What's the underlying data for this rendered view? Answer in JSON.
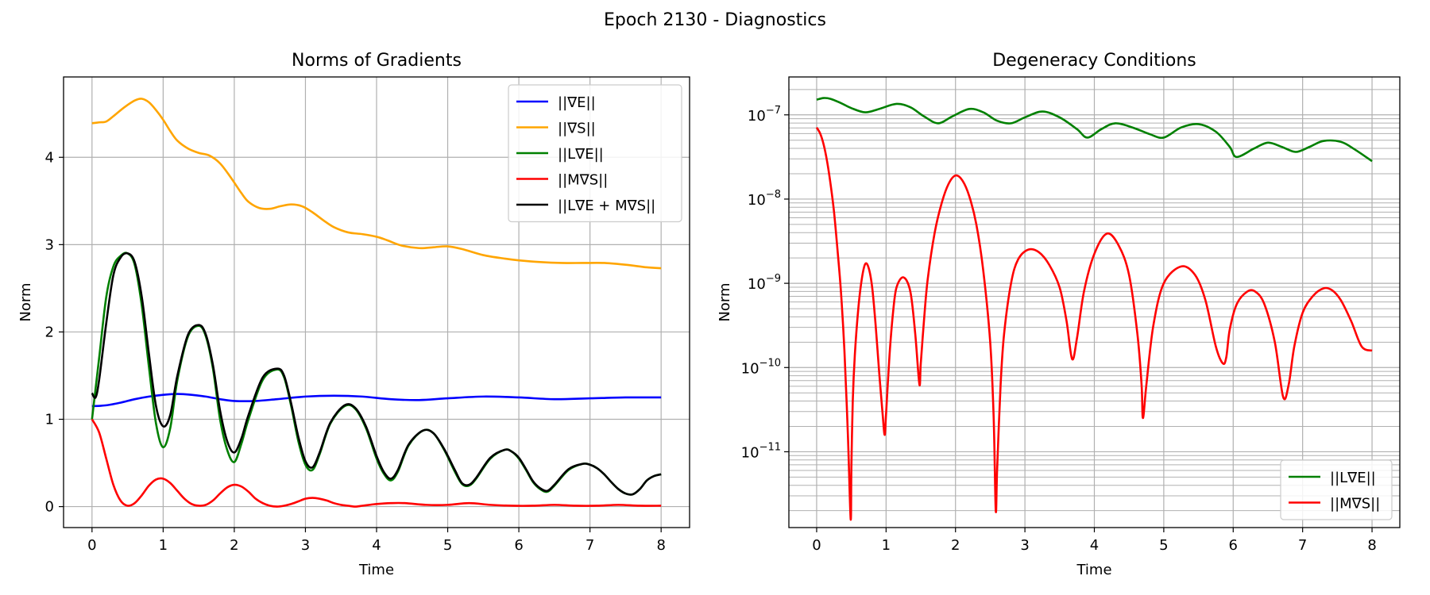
{
  "figure": {
    "title": "Epoch 2130 - Diagnostics"
  },
  "colors": {
    "blue": "#0000ff",
    "orange": "#ffa500",
    "green": "#008000",
    "red": "#ff0000",
    "black": "#000000",
    "grid": "#b0b0b0"
  },
  "chart_data": [
    {
      "type": "line",
      "title": "Norms of Gradients",
      "xlabel": "Time",
      "ylabel": "Norm",
      "xlim": [
        -0.4,
        8.4
      ],
      "ylim": [
        -0.24,
        4.92
      ],
      "xticks": [
        0,
        1,
        2,
        3,
        4,
        5,
        6,
        7,
        8
      ],
      "xtick_labels": [
        "0",
        "1",
        "2",
        "3",
        "4",
        "5",
        "6",
        "7",
        "8"
      ],
      "yticks": [
        0,
        1,
        2,
        3,
        4
      ],
      "ytick_labels": [
        "0",
        "1",
        "2",
        "3",
        "4"
      ],
      "yscale": "linear",
      "grid": true,
      "legend_position": "upper right",
      "series": [
        {
          "name": "||∇E||",
          "color": "#0000ff",
          "x": [
            0,
            0.2,
            0.4,
            0.6,
            0.8,
            1.0,
            1.2,
            1.4,
            1.6,
            1.8,
            2.0,
            2.3,
            2.6,
            3.0,
            3.4,
            3.8,
            4.2,
            4.6,
            5.0,
            5.5,
            6.0,
            6.5,
            7.0,
            7.5,
            8.0
          ],
          "y": [
            1.15,
            1.16,
            1.19,
            1.23,
            1.26,
            1.28,
            1.29,
            1.28,
            1.26,
            1.23,
            1.21,
            1.21,
            1.23,
            1.26,
            1.27,
            1.26,
            1.23,
            1.22,
            1.24,
            1.26,
            1.25,
            1.23,
            1.24,
            1.25,
            1.25
          ]
        },
        {
          "name": "||∇S||",
          "color": "#ffa500",
          "x": [
            0,
            0.1,
            0.2,
            0.3,
            0.45,
            0.6,
            0.7,
            0.8,
            0.9,
            1.0,
            1.1,
            1.2,
            1.35,
            1.5,
            1.65,
            1.8,
            1.95,
            2.1,
            2.2,
            2.35,
            2.5,
            2.65,
            2.8,
            2.95,
            3.1,
            3.25,
            3.4,
            3.6,
            3.8,
            4.0,
            4.15,
            4.35,
            4.6,
            4.8,
            5.0,
            5.2,
            5.5,
            5.8,
            6.0,
            6.3,
            6.6,
            6.9,
            7.2,
            7.5,
            7.8,
            8.0
          ],
          "y": [
            4.39,
            4.4,
            4.41,
            4.47,
            4.57,
            4.65,
            4.67,
            4.63,
            4.54,
            4.43,
            4.3,
            4.19,
            4.1,
            4.05,
            4.02,
            3.93,
            3.77,
            3.59,
            3.49,
            3.42,
            3.41,
            3.44,
            3.46,
            3.44,
            3.37,
            3.28,
            3.2,
            3.14,
            3.12,
            3.09,
            3.05,
            2.99,
            2.96,
            2.97,
            2.98,
            2.95,
            2.88,
            2.84,
            2.82,
            2.8,
            2.79,
            2.79,
            2.79,
            2.77,
            2.74,
            2.73
          ]
        },
        {
          "name": "||L∇E||",
          "color": "#008000",
          "x": [
            0,
            0.1,
            0.2,
            0.3,
            0.4,
            0.5,
            0.6,
            0.7,
            0.8,
            0.9,
            1.0,
            1.1,
            1.2,
            1.35,
            1.5,
            1.6,
            1.7,
            1.8,
            1.9,
            2.0,
            2.1,
            2.2,
            2.4,
            2.6,
            2.7,
            2.8,
            2.9,
            3.0,
            3.1,
            3.2,
            3.35,
            3.55,
            3.7,
            3.85,
            4.0,
            4.1,
            4.2,
            4.3,
            4.45,
            4.65,
            4.8,
            4.95,
            5.1,
            5.2,
            5.3,
            5.4,
            5.6,
            5.8,
            5.9,
            6.0,
            6.1,
            6.2,
            6.3,
            6.4,
            6.5,
            6.7,
            6.9,
            7.0,
            7.1,
            7.2,
            7.3,
            7.4,
            7.5,
            7.6,
            7.7,
            7.8,
            7.9,
            8.0
          ],
          "y": [
            1.0,
            1.7,
            2.4,
            2.75,
            2.87,
            2.9,
            2.77,
            2.3,
            1.6,
            0.95,
            0.68,
            0.9,
            1.45,
            1.95,
            2.07,
            1.95,
            1.58,
            1.0,
            0.65,
            0.51,
            0.72,
            1.0,
            1.45,
            1.57,
            1.48,
            1.15,
            0.75,
            0.48,
            0.42,
            0.6,
            0.95,
            1.15,
            1.12,
            0.9,
            0.55,
            0.38,
            0.3,
            0.4,
            0.7,
            0.87,
            0.84,
            0.65,
            0.4,
            0.26,
            0.24,
            0.32,
            0.55,
            0.65,
            0.63,
            0.55,
            0.42,
            0.28,
            0.2,
            0.17,
            0.24,
            0.42,
            0.49,
            0.48,
            0.44,
            0.37,
            0.28,
            0.2,
            0.15,
            0.14,
            0.2,
            0.3,
            0.35,
            0.37
          ]
        },
        {
          "name": "||M∇S||",
          "color": "#ff0000",
          "x": [
            0,
            0.1,
            0.2,
            0.3,
            0.4,
            0.5,
            0.6,
            0.7,
            0.8,
            0.9,
            1.0,
            1.1,
            1.2,
            1.3,
            1.4,
            1.5,
            1.6,
            1.7,
            1.8,
            1.9,
            2.0,
            2.1,
            2.2,
            2.3,
            2.4,
            2.5,
            2.6,
            2.7,
            2.8,
            2.9,
            3.0,
            3.1,
            3.2,
            3.3,
            3.4,
            3.5,
            3.6,
            3.7,
            3.8,
            3.9,
            4.0,
            4.2,
            4.4,
            4.7,
            5.0,
            5.3,
            5.6,
            5.9,
            6.2,
            6.5,
            6.8,
            7.1,
            7.4,
            7.7,
            8.0
          ],
          "y": [
            1.0,
            0.85,
            0.55,
            0.25,
            0.07,
            0.01,
            0.04,
            0.13,
            0.24,
            0.31,
            0.32,
            0.27,
            0.18,
            0.09,
            0.03,
            0.01,
            0.02,
            0.07,
            0.15,
            0.22,
            0.25,
            0.23,
            0.17,
            0.09,
            0.04,
            0.01,
            0.0,
            0.01,
            0.03,
            0.06,
            0.09,
            0.1,
            0.09,
            0.07,
            0.04,
            0.02,
            0.01,
            0.0,
            0.01,
            0.02,
            0.03,
            0.04,
            0.04,
            0.02,
            0.02,
            0.04,
            0.02,
            0.01,
            0.01,
            0.02,
            0.01,
            0.01,
            0.02,
            0.01,
            0.01
          ]
        },
        {
          "name": "||L∇E + M∇S||",
          "color": "#000000",
          "x": [
            0,
            0.05,
            0.1,
            0.2,
            0.3,
            0.4,
            0.5,
            0.6,
            0.7,
            0.8,
            0.9,
            1.0,
            1.1,
            1.2,
            1.35,
            1.5,
            1.6,
            1.7,
            1.8,
            1.9,
            2.0,
            2.1,
            2.2,
            2.4,
            2.6,
            2.7,
            2.8,
            2.9,
            3.0,
            3.1,
            3.2,
            3.35,
            3.55,
            3.7,
            3.85,
            4.0,
            4.1,
            4.2,
            4.3,
            4.45,
            4.65,
            4.8,
            4.95,
            5.1,
            5.2,
            5.3,
            5.4,
            5.6,
            5.8,
            5.9,
            6.0,
            6.1,
            6.2,
            6.3,
            6.4,
            6.5,
            6.7,
            6.9,
            7.0,
            7.1,
            7.2,
            7.3,
            7.4,
            7.5,
            7.6,
            7.7,
            7.8,
            7.9,
            8.0
          ],
          "y": [
            1.3,
            1.25,
            1.45,
            2.1,
            2.65,
            2.85,
            2.9,
            2.8,
            2.4,
            1.75,
            1.15,
            0.92,
            1.05,
            1.5,
            1.97,
            2.08,
            1.97,
            1.62,
            1.1,
            0.75,
            0.62,
            0.78,
            1.05,
            1.48,
            1.58,
            1.5,
            1.18,
            0.8,
            0.52,
            0.45,
            0.62,
            0.96,
            1.16,
            1.13,
            0.92,
            0.58,
            0.4,
            0.32,
            0.42,
            0.71,
            0.87,
            0.84,
            0.66,
            0.42,
            0.27,
            0.25,
            0.33,
            0.56,
            0.65,
            0.63,
            0.56,
            0.43,
            0.29,
            0.21,
            0.18,
            0.25,
            0.43,
            0.49,
            0.48,
            0.44,
            0.37,
            0.28,
            0.2,
            0.15,
            0.14,
            0.2,
            0.3,
            0.35,
            0.37
          ]
        }
      ]
    },
    {
      "type": "line",
      "title": "Degeneracy Conditions",
      "xlabel": "Time",
      "ylabel": "Norm",
      "xlim": [
        -0.4,
        8.4
      ],
      "ylim_log10": [
        -11.9,
        -6.55
      ],
      "xticks": [
        0,
        1,
        2,
        3,
        4,
        5,
        6,
        7,
        8
      ],
      "xtick_labels": [
        "0",
        "1",
        "2",
        "3",
        "4",
        "5",
        "6",
        "7",
        "8"
      ],
      "yticks_log10": [
        -11,
        -10,
        -9,
        -8,
        -7
      ],
      "ytick_base": "10",
      "ytick_exponents": [
        "−11",
        "−10",
        "−9",
        "−8",
        "−7"
      ],
      "yscale": "log",
      "grid": true,
      "legend_position": "lower right",
      "series": [
        {
          "name": "||L∇E||",
          "color": "#008000",
          "x": [
            0,
            0.1,
            0.2,
            0.35,
            0.5,
            0.7,
            0.9,
            1.15,
            1.35,
            1.55,
            1.75,
            1.95,
            2.2,
            2.4,
            2.6,
            2.8,
            3.0,
            3.25,
            3.5,
            3.75,
            3.9,
            4.1,
            4.3,
            4.55,
            4.8,
            5.0,
            5.25,
            5.5,
            5.75,
            5.95,
            6.05,
            6.3,
            6.5,
            6.7,
            6.9,
            7.1,
            7.3,
            7.55,
            7.75,
            8.0
          ],
          "y_log10": [
            -6.82,
            -6.8,
            -6.81,
            -6.86,
            -6.92,
            -6.97,
            -6.93,
            -6.87,
            -6.91,
            -7.02,
            -7.1,
            -7.02,
            -6.93,
            -6.97,
            -7.07,
            -7.1,
            -7.03,
            -6.96,
            -7.03,
            -7.17,
            -7.27,
            -7.17,
            -7.1,
            -7.15,
            -7.23,
            -7.27,
            -7.15,
            -7.11,
            -7.2,
            -7.38,
            -7.5,
            -7.4,
            -7.33,
            -7.38,
            -7.44,
            -7.38,
            -7.31,
            -7.32,
            -7.41,
            -7.55
          ]
        },
        {
          "name": "||M∇S||",
          "color": "#ff0000",
          "x": [
            0,
            0.05,
            0.1,
            0.15,
            0.2,
            0.25,
            0.3,
            0.35,
            0.4,
            0.45,
            0.49,
            0.5,
            0.52,
            0.55,
            0.6,
            0.65,
            0.7,
            0.75,
            0.8,
            0.85,
            0.9,
            0.95,
            0.98,
            1.0,
            1.05,
            1.1,
            1.15,
            1.25,
            1.35,
            1.42,
            1.48,
            1.5,
            1.55,
            1.6,
            1.7,
            1.8,
            1.9,
            2.0,
            2.1,
            2.2,
            2.3,
            2.4,
            2.5,
            2.55,
            2.58,
            2.6,
            2.65,
            2.7,
            2.8,
            2.9,
            3.05,
            3.2,
            3.35,
            3.5,
            3.6,
            3.68,
            3.75,
            3.85,
            4.0,
            4.18,
            4.35,
            4.5,
            4.62,
            4.68,
            4.7,
            4.75,
            4.85,
            5.0,
            5.25,
            5.45,
            5.6,
            5.75,
            5.85,
            5.9,
            5.95,
            6.05,
            6.2,
            6.32,
            6.45,
            6.6,
            6.72,
            6.8,
            6.88,
            7.0,
            7.15,
            7.3,
            7.42,
            7.55,
            7.7,
            7.85,
            8.0
          ],
          "y_log10": [
            -7.15,
            -7.22,
            -7.35,
            -7.55,
            -7.82,
            -8.15,
            -8.6,
            -9.1,
            -9.8,
            -10.8,
            -11.8,
            -11.2,
            -10.4,
            -9.85,
            -9.3,
            -8.95,
            -8.77,
            -8.82,
            -9.05,
            -9.5,
            -10.05,
            -10.55,
            -10.8,
            -10.55,
            -9.85,
            -9.35,
            -9.05,
            -8.93,
            -9.1,
            -9.6,
            -10.2,
            -9.95,
            -9.4,
            -8.95,
            -8.4,
            -8.05,
            -7.82,
            -7.72,
            -7.78,
            -7.97,
            -8.3,
            -8.85,
            -9.7,
            -10.6,
            -11.7,
            -11.2,
            -10.2,
            -9.6,
            -9.0,
            -8.72,
            -8.6,
            -8.63,
            -8.78,
            -9.05,
            -9.45,
            -9.9,
            -9.65,
            -9.1,
            -8.65,
            -8.41,
            -8.55,
            -8.9,
            -9.6,
            -10.2,
            -10.6,
            -10.2,
            -9.5,
            -9.0,
            -8.8,
            -8.9,
            -9.2,
            -9.75,
            -9.95,
            -9.88,
            -9.55,
            -9.25,
            -9.1,
            -9.1,
            -9.25,
            -9.7,
            -10.35,
            -10.2,
            -9.75,
            -9.35,
            -9.15,
            -9.06,
            -9.08,
            -9.2,
            -9.45,
            -9.75,
            -9.8
          ]
        }
      ]
    }
  ]
}
